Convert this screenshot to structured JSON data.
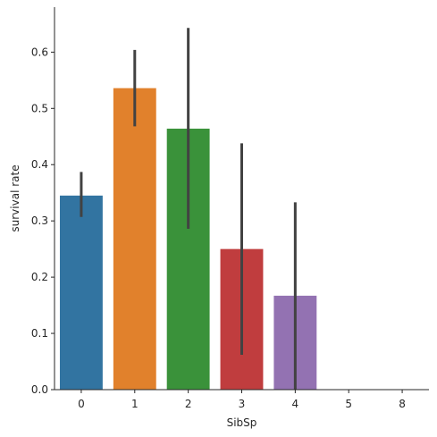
{
  "chart_data": {
    "type": "bar",
    "title": "",
    "xlabel": "SibSp",
    "ylabel": "survival rate",
    "categories": [
      "0",
      "1",
      "2",
      "3",
      "4",
      "5",
      "8"
    ],
    "values": [
      0.345,
      0.536,
      0.464,
      0.25,
      0.167,
      0.0,
      0.0
    ],
    "ci_low": [
      0.307,
      0.468,
      0.286,
      0.062,
      0.0,
      0.0,
      0.0
    ],
    "ci_high": [
      0.387,
      0.604,
      0.643,
      0.438,
      0.333,
      0.0,
      0.0
    ],
    "bar_colors": [
      "#3274a1",
      "#e1812c",
      "#3a923a",
      "#c03d3e",
      "#9372b2",
      "#845b53",
      "#d684bd"
    ],
    "errorbar_color": "#424242",
    "ylim": [
      0,
      0.68
    ],
    "yticks": [
      0.0,
      0.1,
      0.2,
      0.3,
      0.4,
      0.5,
      0.6
    ],
    "ytick_labels": [
      "0.0",
      "0.1",
      "0.2",
      "0.3",
      "0.4",
      "0.5",
      "0.6"
    ],
    "grid": false,
    "legend": "none"
  }
}
